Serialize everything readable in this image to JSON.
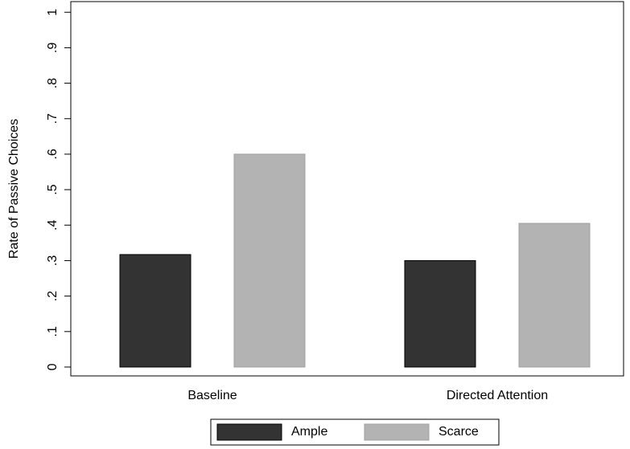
{
  "chart_data": {
    "type": "bar",
    "y_label": "Rate of Passive Choices",
    "categories": [
      "Baseline",
      "Directed Attention"
    ],
    "series": [
      {
        "name": "Ample",
        "color": "#333333",
        "values": [
          0.317,
          0.3
        ]
      },
      {
        "name": "Scarce",
        "color": "#b3b3b3",
        "values": [
          0.6,
          0.405
        ]
      }
    ],
    "ylim": [
      -0.025,
      1.03
    ],
    "yticks": [
      0,
      {
        "value": 0.1,
        "label": ".1"
      },
      {
        "value": 0.2,
        "label": ".2"
      },
      {
        "value": 0.3,
        "label": ".3"
      },
      {
        "value": 0.4,
        "label": ".4"
      },
      {
        "value": 0.5,
        "label": ".5"
      },
      {
        "value": 0.6,
        "label": ".6"
      },
      {
        "value": 0.7,
        "label": ".7"
      },
      {
        "value": 0.8,
        "label": ".8"
      },
      {
        "value": 0.9,
        "label": ".9"
      },
      1
    ],
    "legend": "bottom"
  }
}
